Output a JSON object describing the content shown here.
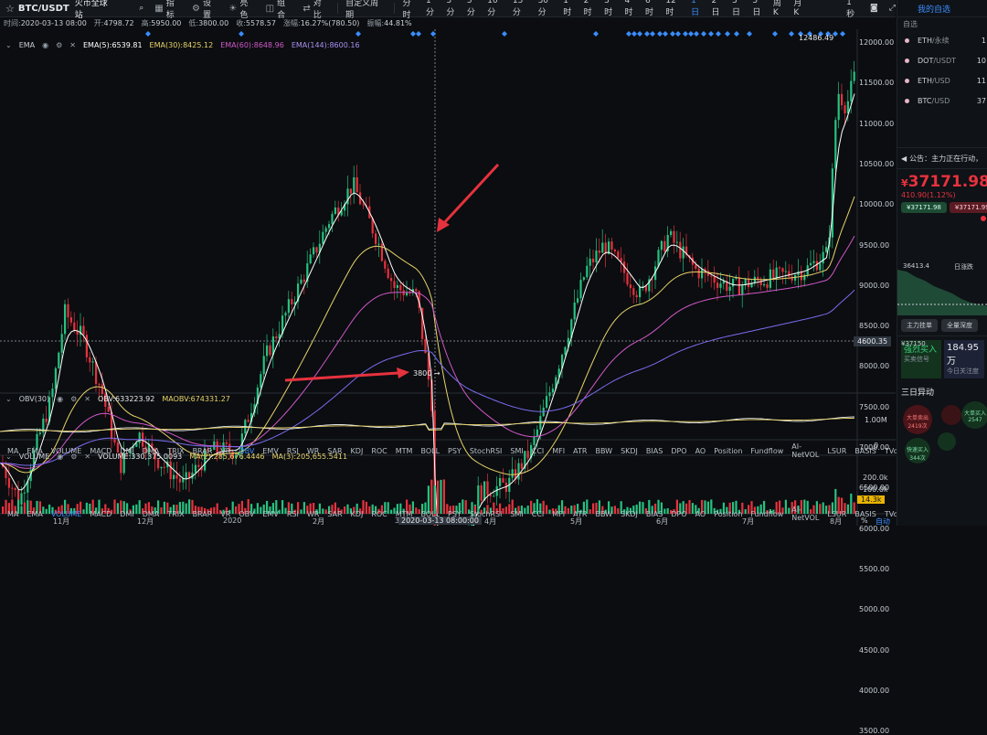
{
  "toolbar": {
    "symbol": "BTC/USDT",
    "exchange": "火币全球站",
    "items": [
      {
        "icon": "indicator-icon",
        "label": "指标"
      },
      {
        "icon": "gear-icon",
        "label": "设置"
      },
      {
        "icon": "sun-icon",
        "label": "亮色"
      },
      {
        "icon": "layers-icon",
        "label": "组合"
      },
      {
        "icon": "compare-icon",
        "label": "对比"
      }
    ],
    "custom_period": "自定义周期",
    "intervals": [
      "分时",
      "1分",
      "3分",
      "5分",
      "10分",
      "15分",
      "30分",
      "1时",
      "2时",
      "3时",
      "4时",
      "6时",
      "12时",
      "1日",
      "2日",
      "3日",
      "5日",
      "周K",
      "月K"
    ],
    "active_interval": "1日",
    "right_label": "1秒"
  },
  "infobar": {
    "time_k": "时间:",
    "time_v": "2020-03-13 08:00",
    "open_k": "开:",
    "open_v": "4798.72",
    "high_k": "高:",
    "high_v": "5950.00",
    "low_k": "低:",
    "low_v": "3800.00",
    "close_k": "收:",
    "close_v": "5578.57",
    "chg_k": "涨幅:",
    "chg_v": "16.27%(780.50)",
    "amp_k": "振幅:",
    "amp_v": "44.81%"
  },
  "ema_legend": {
    "name": "EMA",
    "ema5": "EMA(5):6539.81",
    "ema30": "EMA(30):8425.12",
    "ema60": "EMA(60):8648.96",
    "ema144": "EMA(144):8600.16"
  },
  "price_axis": [
    "12000.00",
    "11500.00",
    "11000.00",
    "10500.00",
    "10000.00",
    "9500.00",
    "9000.00",
    "8500.00",
    "8000.00",
    "7500.00",
    "7000.00",
    "6500.00",
    "6000.00",
    "5500.00",
    "5000.00",
    "4500.00",
    "4000.00",
    "3500.00"
  ],
  "cursor_price": "4600.35",
  "high_label": "12486.49",
  "low_label": "3800",
  "obv": {
    "name": "OBV(30)",
    "value": "OBV:633223.92",
    "ma": "MAOBV:674331.27",
    "axis_1m": "1.00M",
    "axis_0": "0"
  },
  "volume": {
    "name": "VOLUME",
    "value": "VOLUME:330,375.0093",
    "ma2": "MA(2):285,676.4446",
    "ma3": "MA(3):205,655.5411",
    "axis_200k": "200.0k",
    "axis_100k": "100.0k",
    "last_badge": "14.3k"
  },
  "indicator_tabs_1": [
    "MA",
    "EMA",
    "VOLUME",
    "MACD",
    "DMI",
    "DMA",
    "TRIX",
    "BRAR",
    "VR",
    "OBV",
    "EMV",
    "RSI",
    "WR",
    "SAR",
    "KDJ",
    "ROC",
    "MTM",
    "BOLL",
    "PSY",
    "StochRSI",
    "SMI",
    "CCI",
    "MFI",
    "ATR",
    "BBW",
    "SKDJ",
    "BIAS",
    "DPO",
    "AO",
    "Position",
    "Fundflow",
    "AI-NetVOL",
    "LSUR",
    "BASIS",
    "TVolume",
    "FTBS",
    "TTSI",
    "TTMU"
  ],
  "indicator_tabs_1_active": "OBV",
  "indicator_tabs_2": [
    "MA",
    "EMA",
    "VOLUME",
    "MACD",
    "DMI",
    "DMA",
    "TRIX",
    "BRAR",
    "VR",
    "OBV",
    "EMV",
    "RSI",
    "WR",
    "SAR",
    "KDJ",
    "ROC",
    "MTM",
    "BOLL",
    "PSY",
    "StochRSI",
    "SMI",
    "CCI",
    "MFI",
    "ATR",
    "BBW",
    "SKDJ",
    "BIAS",
    "DPO",
    "AO",
    "Position",
    "Fundflow",
    "AI-NetVOL",
    "LSUR",
    "BASIS",
    "TVolume",
    "FTBS",
    "TTSI",
    "TTMU"
  ],
  "indicator_tabs_2_active": "VOLUME",
  "x_labels": [
    "11月",
    "12月",
    "2020",
    "2月",
    "3",
    "4月",
    "5月",
    "6月",
    "7月",
    "8月"
  ],
  "x_cursor": "2020-03-13 08:00:00",
  "footer_right": [
    "%",
    "自动"
  ],
  "right_panel": {
    "tab": "我的自选",
    "col_header": "自选",
    "watch": [
      {
        "sym": "ETH",
        "quote": "/永续",
        "val": "1"
      },
      {
        "sym": "DOT",
        "quote": "/USDT",
        "val": "10"
      },
      {
        "sym": "ETH",
        "quote": "/USD",
        "val": "11"
      },
      {
        "sym": "BTC",
        "quote": "/USD",
        "val": "37"
      }
    ],
    "announcement": "公告：主力正在行动，",
    "price": "37171.98",
    "price_prefix": "¥",
    "change": "410.90(1.12%)",
    "bid": "¥37171.98",
    "ask": "¥37171.99",
    "depth_low": "36413.4",
    "depth_tag": "日涨跌",
    "depth_bottom": "¥37150",
    "btn1": "主力挂单",
    "btn2": "全量深度",
    "buy_title": "强烈买入",
    "buy_sub": "买卖信号",
    "buy_val": "184.95万",
    "buy_sub2": "今日关注度",
    "sec_title": "三日异动",
    "bubbles": [
      "大单卖出",
      "大单买入",
      "快速拉升",
      "减仓单",
      "快速买入"
    ],
    "bubble_vals": [
      "2419次",
      "2547",
      "344次"
    ]
  },
  "colors": {
    "up": "#26c281",
    "down": "#e6323e",
    "accent": "#3a8dff",
    "ema5": "#ffffff",
    "ema30": "#e8d36a",
    "ema60": "#d058c8",
    "ema144": "#7a6cf0"
  }
}
